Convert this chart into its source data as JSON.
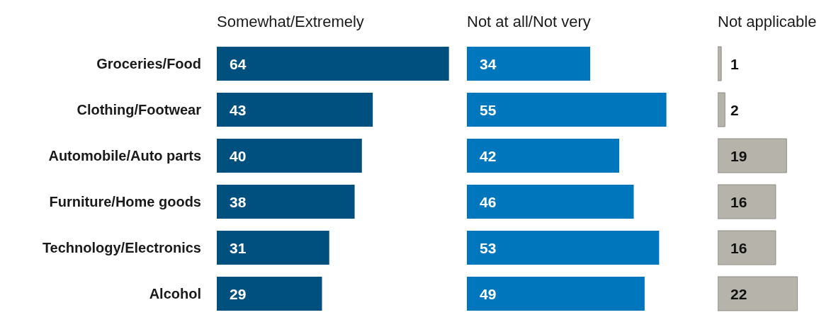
{
  "chart_data": [
    {
      "type": "bar",
      "orientation": "horizontal",
      "title": "Somewhat/Extremely",
      "categories": [
        "Groceries/Food",
        "Clothing/Footwear",
        "Automobile/Auto parts",
        "Furniture/Home goods",
        "Technology/Electronics",
        "Alcohol"
      ],
      "values": [
        64,
        43,
        40,
        38,
        31,
        29
      ],
      "color": "#00507f",
      "data_labels": true,
      "tick_labels": "y"
    },
    {
      "type": "bar",
      "orientation": "horizontal",
      "title": "Not at all/Not very",
      "categories": [
        null,
        null,
        null,
        null,
        null,
        null
      ],
      "values": [
        34,
        55,
        42,
        46,
        53,
        49
      ],
      "color": "#0077bd",
      "data_labels": true,
      "tick_labels": false
    },
    {
      "type": "bar",
      "orientation": "horizontal",
      "title": "Not applicable",
      "categories": [
        null,
        null,
        null,
        null,
        null,
        null
      ],
      "values": [
        1,
        2,
        19,
        16,
        16,
        22
      ],
      "color": "#b5b3aa",
      "data_labels": true,
      "tick_labels": false
    }
  ]
}
